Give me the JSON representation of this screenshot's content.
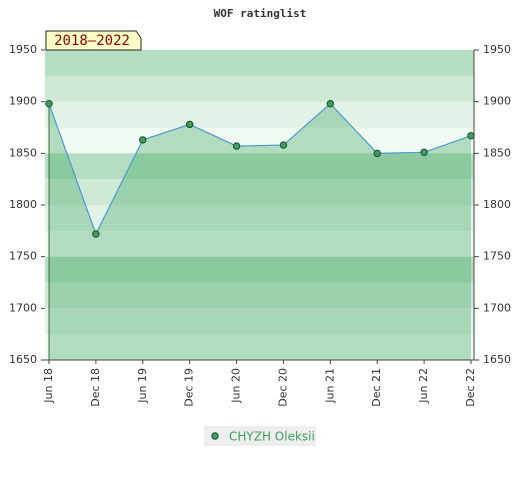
{
  "chart_data": {
    "type": "line",
    "title": "WOF ratinglist",
    "badge": "2018–2022",
    "categories": [
      "Jun 18",
      "Dec 18",
      "Jun 19",
      "Dec 19",
      "Jun 20",
      "Dec 20",
      "Jun 21",
      "Dec 21",
      "Jun 22",
      "Dec 22"
    ],
    "series": [
      {
        "name": "CHYZH Oleksii",
        "color": "#4a9bd0",
        "marker_color": "#3f9e5f",
        "values": [
          1898,
          1772,
          1863,
          1878,
          1857,
          1858,
          1898,
          1850,
          1851,
          1867
        ]
      }
    ],
    "ylim": [
      1650,
      1950
    ],
    "yticks": [
      1650,
      1700,
      1750,
      1800,
      1850,
      1900,
      1950
    ]
  }
}
